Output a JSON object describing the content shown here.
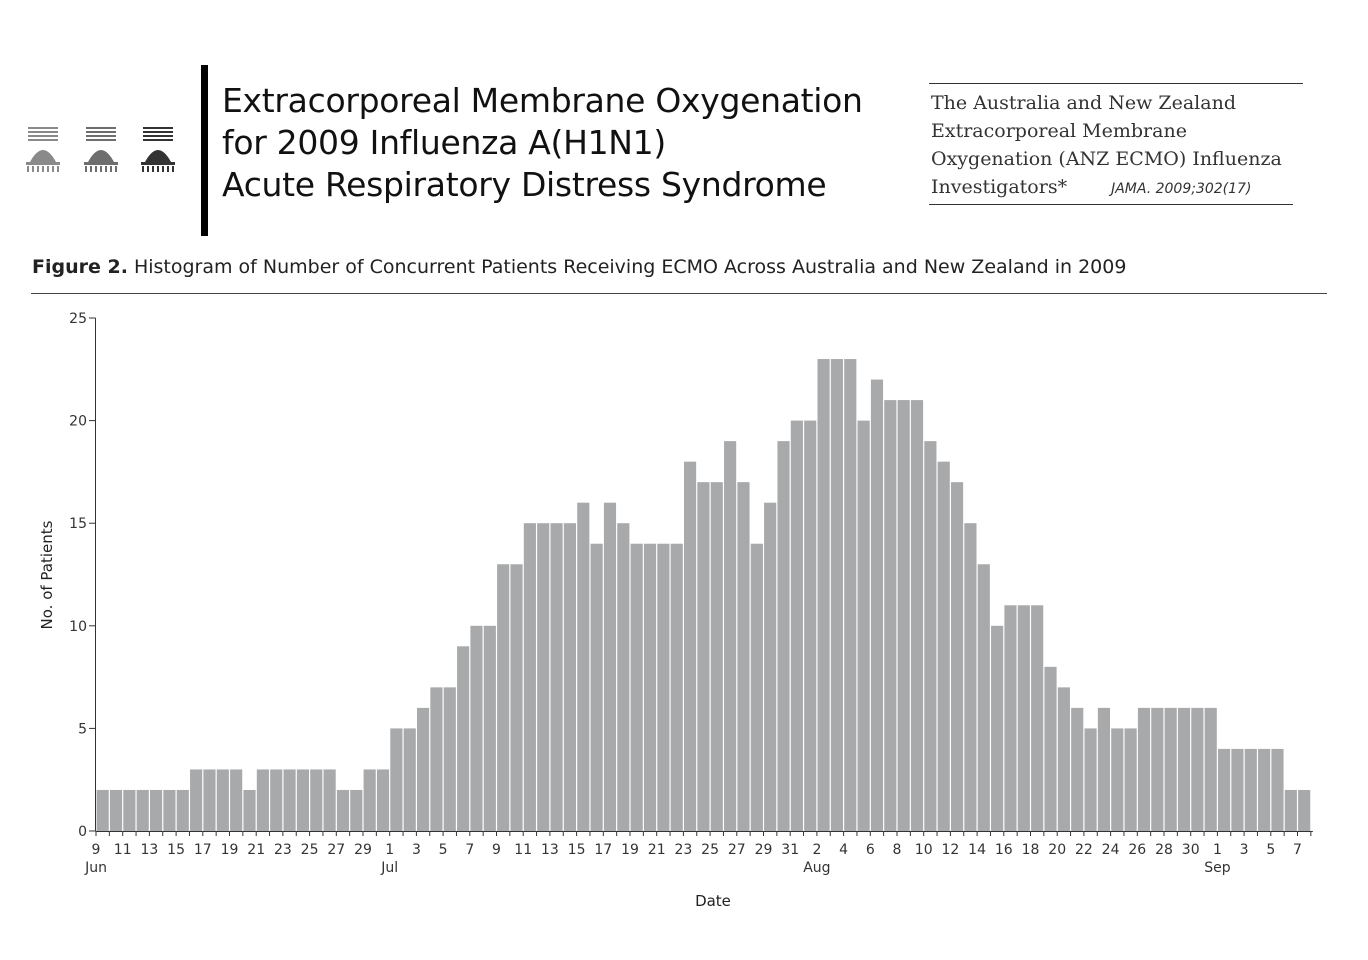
{
  "header": {
    "title_lines": [
      "Extracorporeal Membrane Oxygenation",
      "for 2009 Influenza A(H1N1)",
      "Acute Respiratory Distress Syndrome"
    ],
    "author_lines": [
      "The Australia and New Zealand",
      "Extracorporeal Membrane",
      "Oxygenation (ANZ ECMO) Influenza",
      "Investigators*"
    ],
    "journal": "JAMA. 2009;302(17)"
  },
  "figure": {
    "label": "Figure 2.",
    "caption": "Histogram of Number of Concurrent Patients Receiving ECMO Across Australia and New Zealand in 2009"
  },
  "chart_data": {
    "type": "bar",
    "title": "",
    "xlabel": "Date",
    "ylabel": "No. of Patients",
    "ylim": [
      0,
      25
    ],
    "yticks": [
      0,
      5,
      10,
      15,
      20,
      25
    ],
    "bar_color": "#a8a9ab",
    "grid": false,
    "start_date": "2009-06-09",
    "values": [
      2,
      2,
      2,
      2,
      2,
      2,
      2,
      3,
      3,
      3,
      3,
      2,
      3,
      3,
      3,
      3,
      3,
      3,
      2,
      2,
      3,
      3,
      5,
      5,
      6,
      7,
      7,
      9,
      10,
      10,
      13,
      13,
      15,
      15,
      15,
      15,
      16,
      14,
      16,
      15,
      14,
      14,
      14,
      14,
      18,
      17,
      17,
      19,
      17,
      14,
      16,
      19,
      20,
      20,
      23,
      23,
      23,
      20,
      22,
      21,
      21,
      21,
      19,
      18,
      17,
      15,
      13,
      10,
      11,
      11,
      11,
      8,
      7,
      6,
      5,
      6,
      5,
      5,
      6,
      6,
      6,
      6,
      6,
      6,
      4,
      4,
      4,
      4,
      4,
      2,
      2
    ],
    "x_tick_labels": [
      "9",
      "11",
      "13",
      "15",
      "17",
      "19",
      "21",
      "23",
      "25",
      "27",
      "29",
      "1",
      "3",
      "5",
      "7",
      "9",
      "11",
      "13",
      "15",
      "17",
      "19",
      "21",
      "23",
      "25",
      "27",
      "29",
      "31",
      "2",
      "4",
      "6",
      "8",
      "10",
      "12",
      "14",
      "16",
      "18",
      "20",
      "22",
      "24",
      "26",
      "28",
      "30",
      "1",
      "3",
      "5",
      "7"
    ],
    "month_labels": [
      {
        "label": "Jun",
        "date": "2009-06-09"
      },
      {
        "label": "Jul",
        "date": "2009-07-01"
      },
      {
        "label": "Aug",
        "date": "2009-08-02"
      },
      {
        "label": "Sep",
        "date": "2009-09-01"
      }
    ]
  }
}
